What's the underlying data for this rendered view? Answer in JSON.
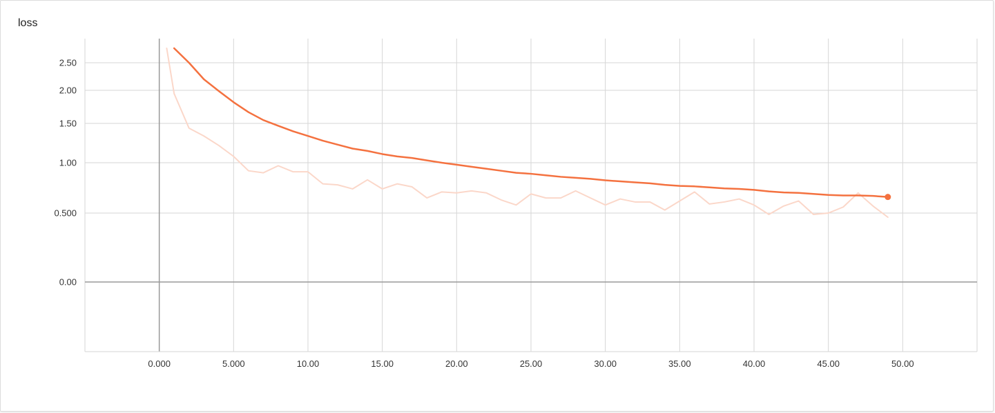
{
  "chart_data": {
    "type": "line",
    "title": "loss",
    "xlabel": "",
    "ylabel": "",
    "xlim": [
      -5,
      55
    ],
    "ylim": [
      -1.0,
      3.0
    ],
    "grid": true,
    "x_ticks": [
      0,
      5,
      10,
      15,
      20,
      25,
      30,
      35,
      40,
      45,
      50
    ],
    "x_tick_labels": [
      "0.000",
      "5.000",
      "10.00",
      "15.00",
      "20.00",
      "25.00",
      "30.00",
      "35.00",
      "40.00",
      "45.00",
      "50.00"
    ],
    "y_ticks": [
      0.0,
      0.5,
      1.0,
      1.5,
      2.0,
      2.5
    ],
    "y_tick_labels": [
      "0.00",
      "0.500",
      "1.00",
      "1.50",
      "2.00",
      "2.50"
    ],
    "colors": {
      "smoothed": "#f4713f",
      "raw": "#fbd7c9",
      "grid": "#d6d6d6",
      "axis": "#999999"
    },
    "series": [
      {
        "role": "raw",
        "x": [
          0.5,
          1,
          2,
          3,
          4,
          5,
          6,
          7,
          8,
          9,
          10,
          11,
          12,
          13,
          14,
          15,
          16,
          17,
          18,
          19,
          20,
          21,
          22,
          23,
          24,
          25,
          26,
          27,
          28,
          29,
          30,
          31,
          32,
          33,
          34,
          35,
          36,
          37,
          38,
          39,
          40,
          41,
          42,
          43,
          44,
          45,
          46,
          47,
          48,
          49
        ],
        "values": [
          2.8,
          1.95,
          1.44,
          1.34,
          1.22,
          1.08,
          0.92,
          0.9,
          0.97,
          0.91,
          0.91,
          0.79,
          0.78,
          0.74,
          0.83,
          0.74,
          0.79,
          0.76,
          0.65,
          0.71,
          0.7,
          0.72,
          0.7,
          0.63,
          0.58,
          0.69,
          0.65,
          0.65,
          0.72,
          0.65,
          0.58,
          0.64,
          0.61,
          0.61,
          0.53,
          0.62,
          0.71,
          0.59,
          0.61,
          0.64,
          0.58,
          0.49,
          0.57,
          0.62,
          0.49,
          0.5,
          0.56,
          0.7,
          0.57,
          0.47
        ]
      },
      {
        "role": "smoothed",
        "x": [
          1,
          2,
          3,
          4,
          5,
          6,
          7,
          8,
          9,
          10,
          11,
          12,
          13,
          14,
          15,
          16,
          17,
          18,
          19,
          20,
          21,
          22,
          23,
          24,
          25,
          26,
          27,
          28,
          29,
          30,
          31,
          32,
          33,
          34,
          35,
          36,
          37,
          38,
          39,
          40,
          41,
          42,
          43,
          44,
          45,
          46,
          47,
          48,
          49
        ],
        "values": [
          2.8,
          2.5,
          2.2,
          1.99,
          1.82,
          1.67,
          1.55,
          1.47,
          1.4,
          1.34,
          1.28,
          1.23,
          1.18,
          1.15,
          1.11,
          1.08,
          1.06,
          1.03,
          1.0,
          0.98,
          0.96,
          0.94,
          0.92,
          0.9,
          0.89,
          0.875,
          0.86,
          0.85,
          0.84,
          0.825,
          0.815,
          0.805,
          0.795,
          0.78,
          0.77,
          0.765,
          0.755,
          0.745,
          0.74,
          0.73,
          0.715,
          0.705,
          0.7,
          0.69,
          0.68,
          0.675,
          0.675,
          0.67,
          0.66
        ]
      }
    ]
  }
}
